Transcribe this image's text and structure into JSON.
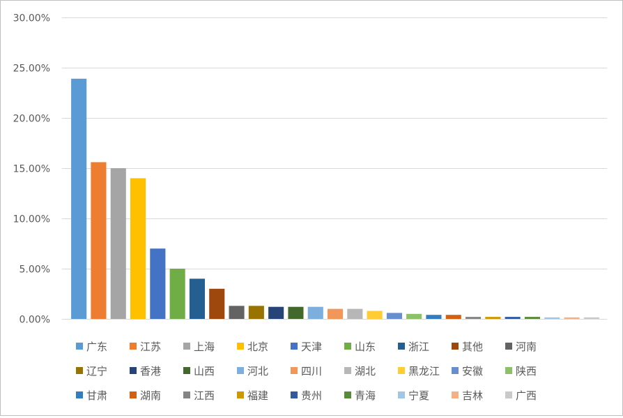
{
  "chart_data": {
    "type": "bar",
    "title": "",
    "xlabel": "",
    "ylabel": "",
    "ylim": [
      0,
      0.3
    ],
    "y_ticks": [
      "0.00%",
      "5.00%",
      "10.00%",
      "15.00%",
      "20.00%",
      "25.00%",
      "30.00%"
    ],
    "grid": true,
    "legend_position": "bottom",
    "categories": [
      "广东",
      "江苏",
      "上海",
      "北京",
      "天津",
      "山东",
      "浙江",
      "其他",
      "河南",
      "辽宁",
      "香港",
      "山西",
      "河北",
      "四川",
      "湖北",
      "黑龙江",
      "安徽",
      "陕西",
      "甘肃",
      "湖南",
      "江西",
      "福建",
      "贵州",
      "青海",
      "宁夏",
      "吉林",
      "广西"
    ],
    "values": [
      0.239,
      0.156,
      0.15,
      0.14,
      0.07,
      0.05,
      0.04,
      0.03,
      0.013,
      0.013,
      0.012,
      0.012,
      0.012,
      0.01,
      0.01,
      0.008,
      0.006,
      0.005,
      0.004,
      0.004,
      0.002,
      0.002,
      0.002,
      0.002,
      0.0015,
      0.0015,
      0.0015
    ],
    "colors": [
      "#5b9bd5",
      "#ed7d31",
      "#a5a5a5",
      "#ffc000",
      "#4472c4",
      "#70ad47",
      "#255e91",
      "#9e480e",
      "#636363",
      "#997300",
      "#264478",
      "#43682b",
      "#7cafdd",
      "#f1975a",
      "#b7b7b7",
      "#ffcd33",
      "#698ed0",
      "#8cc168",
      "#327dc2",
      "#d26012",
      "#848484",
      "#cc9a00",
      "#335aa1",
      "#5a8a39",
      "#a3c6e7",
      "#f4b183",
      "#c9c9c9"
    ]
  }
}
